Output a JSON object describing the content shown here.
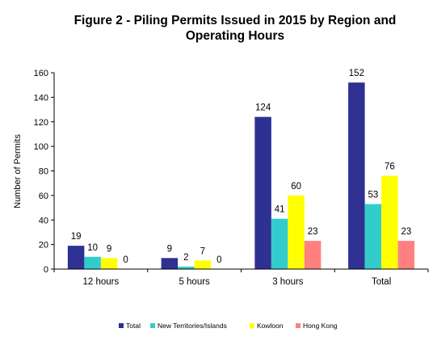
{
  "chart_data": {
    "type": "bar",
    "title_lines": [
      "Figure 2 - Piling Permits Issued in 2015 by Region and",
      "Operating Hours"
    ],
    "ylabel": "Number of Permits",
    "xlabel": "",
    "ylim": [
      0,
      160
    ],
    "yticks": [
      0,
      20,
      40,
      60,
      80,
      100,
      120,
      140,
      160
    ],
    "categories": [
      "12 hours",
      "5 hours",
      "3 hours",
      "Total"
    ],
    "series": [
      {
        "name": "Total",
        "color": "#2E3192",
        "values": [
          19,
          9,
          124,
          152
        ]
      },
      {
        "name": "New Territories/Islands",
        "color": "#33CCCC",
        "values": [
          10,
          2,
          41,
          53
        ]
      },
      {
        "name": "Kowloon",
        "color": "#FFFF00",
        "values": [
          9,
          7,
          60,
          76
        ]
      },
      {
        "name": "Hong Kong",
        "color": "#FF8080",
        "values": [
          0,
          0,
          23,
          23
        ]
      }
    ],
    "grid": false,
    "legend_position": "bottom"
  }
}
